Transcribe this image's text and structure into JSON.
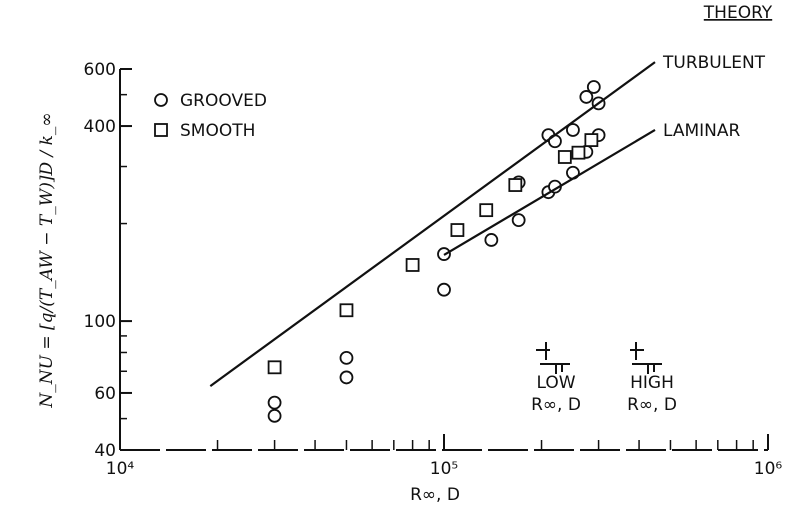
{
  "chart_data": {
    "type": "scatter",
    "log_x": true,
    "log_y": true,
    "y_label": "N_NU = [q/(T_AW − T_W)]D / k_∞",
    "x_label": "R∞, D",
    "theory_title": "THEORY",
    "xlim": [
      10000,
      1000000
    ],
    "ylim": [
      40,
      600
    ],
    "xticks": [
      {
        "value": 10000,
        "label": "10⁴"
      },
      {
        "value": 100000,
        "label": "10⁵"
      },
      {
        "value": 1000000,
        "label": "10⁶"
      }
    ],
    "xminorticks": [
      20000,
      30000,
      40000,
      50000,
      60000,
      70000,
      80000,
      90000,
      200000,
      300000,
      400000,
      500000,
      600000,
      700000,
      800000,
      900000
    ],
    "yticks": [
      40,
      60,
      100,
      400,
      600
    ],
    "yminorticks": [
      50,
      70,
      80,
      90,
      200,
      300,
      500
    ],
    "series": [
      {
        "name": "GROOVED",
        "marker": "circle",
        "color": "#111111",
        "x": [
          30000,
          30000,
          50000,
          50000,
          100000,
          100000,
          140000,
          170000,
          170000,
          210000,
          210000,
          220000,
          220000,
          250000,
          250000,
          275000,
          275000,
          290000,
          300000,
          300000
        ],
        "values": [
          56,
          51,
          77,
          67,
          161,
          125,
          178,
          268,
          205,
          250,
          375,
          359,
          260,
          389,
          287,
          333,
          492,
          528,
          470,
          375
        ]
      },
      {
        "name": "SMOOTH",
        "marker": "square",
        "color": "#111111",
        "x": [
          30000,
          50000,
          80000,
          110000,
          135000,
          166000,
          236000,
          260000,
          285000
        ],
        "values": [
          72,
          108,
          149,
          191,
          220,
          263,
          321,
          331,
          362
        ]
      },
      {
        "name": "TURBULENT",
        "marker": "line",
        "color": "#111111",
        "x": [
          19000,
          448000
        ],
        "values": [
          63,
          630
        ]
      },
      {
        "name": "LAMINAR",
        "marker": "line",
        "color": "#111111",
        "x": [
          100000,
          448000
        ],
        "values": [
          160,
          389
        ]
      }
    ],
    "annotations": [
      "LOW",
      "R∞, D",
      "HIGH",
      "R∞, D"
    ]
  }
}
